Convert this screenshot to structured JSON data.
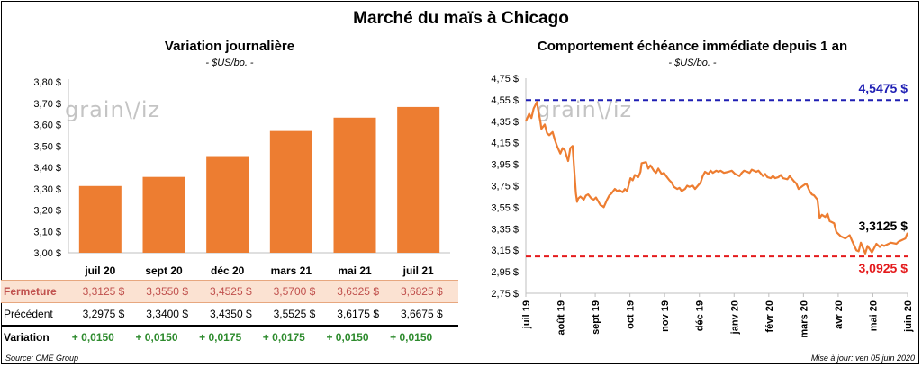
{
  "main_title": "Marché du maïs à Chicago",
  "watermark": {
    "text_left": "grain",
    "text_right": "iz"
  },
  "left_chart": {
    "title": "Variation  journalière",
    "unit": "- $US/bo. -"
  },
  "right_chart": {
    "title": "Comportement  échéance immédiate depuis 1 an",
    "unit": "- $US/bo. -"
  },
  "table": {
    "rows": [
      {
        "label": "Fermeture",
        "values": [
          "3,3125  $",
          "3,3550  $",
          "3,4525  $",
          "3,5700  $",
          "3,6325  $",
          "3,6825  $"
        ]
      },
      {
        "label": "Précédent",
        "values": [
          "3,2975  $",
          "3,3400  $",
          "3,4350  $",
          "3,5525  $",
          "3,6175  $",
          "3,6675  $"
        ]
      },
      {
        "label": "Variation",
        "values": [
          "+ 0,0150",
          "+ 0,0150",
          "+ 0,0175",
          "+ 0,0175",
          "+ 0,0150",
          "+ 0,0150"
        ]
      }
    ]
  },
  "footer": {
    "source": "Source: CME Group",
    "update": "Mise à jour: ven 05 juin 2020"
  },
  "colors": {
    "bar": "#ed7d31",
    "line": "#ed7d31",
    "high": "#1f1fb4",
    "low": "#e41a1c"
  },
  "chart_data": [
    {
      "type": "bar",
      "categories": [
        "juil 20",
        "sept 20",
        "déc 20",
        "mars 21",
        "mai 21",
        "juil 21"
      ],
      "values": [
        3.3125,
        3.355,
        3.4525,
        3.57,
        3.6325,
        3.6825
      ],
      "ylim": [
        3.0,
        3.8
      ],
      "yticks": [
        "3,00 $",
        "3,10 $",
        "3,20 $",
        "3,30 $",
        "3,40 $",
        "3,50 $",
        "3,60 $",
        "3,70 $",
        "3,80 $"
      ],
      "grid": false,
      "title": "Variation  journalière"
    },
    {
      "type": "line",
      "title": "Comportement  échéance immédiate depuis 1 an",
      "ylim": [
        2.75,
        4.75
      ],
      "yticks": [
        "2,75 $",
        "2,95 $",
        "3,15 $",
        "3,35 $",
        "3,55 $",
        "3,75 $",
        "3,95 $",
        "4,15 $",
        "4,35 $",
        "4,55 $",
        "4,75 $"
      ],
      "xticks": [
        "juil 19",
        "août 19",
        "sept 19",
        "oct 19",
        "nov 19",
        "déc 19",
        "janv 20",
        "févr 20",
        "mars 20",
        "avr 20",
        "mai 20",
        "juin 20"
      ],
      "x_range": [
        "2019-06-28",
        "2020-06-05"
      ],
      "high": {
        "value": 4.5475,
        "label": "4,5475 $"
      },
      "low": {
        "value": 3.0925,
        "label": "3,0925 $"
      },
      "last": {
        "value": 3.3125,
        "label": "3,3125 $"
      },
      "series": [
        {
          "values": [
            [
              "2019-06-28",
              4.35
            ],
            [
              "2019-07-01",
              4.42
            ],
            [
              "2019-07-03",
              4.38
            ],
            [
              "2019-07-05",
              4.47
            ],
            [
              "2019-07-08",
              4.53
            ],
            [
              "2019-07-09",
              4.46
            ],
            [
              "2019-07-11",
              4.35
            ],
            [
              "2019-07-12",
              4.28
            ],
            [
              "2019-07-15",
              4.32
            ],
            [
              "2019-07-17",
              4.24
            ],
            [
              "2019-07-19",
              4.22
            ],
            [
              "2019-07-22",
              4.25
            ],
            [
              "2019-07-24",
              4.18
            ],
            [
              "2019-07-26",
              4.12
            ],
            [
              "2019-07-29",
              4.05
            ],
            [
              "2019-07-31",
              4.1
            ],
            [
              "2019-08-02",
              4.08
            ],
            [
              "2019-08-05",
              3.98
            ],
            [
              "2019-08-07",
              4.1
            ],
            [
              "2019-08-09",
              4.12
            ],
            [
              "2019-08-12",
              3.68
            ],
            [
              "2019-08-13",
              3.6
            ],
            [
              "2019-08-14",
              3.63
            ],
            [
              "2019-08-16",
              3.65
            ],
            [
              "2019-08-19",
              3.62
            ],
            [
              "2019-08-21",
              3.66
            ],
            [
              "2019-08-23",
              3.67
            ],
            [
              "2019-08-26",
              3.63
            ],
            [
              "2019-08-28",
              3.62
            ],
            [
              "2019-08-30",
              3.64
            ],
            [
              "2019-09-03",
              3.57
            ],
            [
              "2019-09-05",
              3.56
            ],
            [
              "2019-09-06",
              3.55
            ],
            [
              "2019-09-09",
              3.62
            ],
            [
              "2019-09-11",
              3.66
            ],
            [
              "2019-09-13",
              3.68
            ],
            [
              "2019-09-16",
              3.72
            ],
            [
              "2019-09-18",
              3.7
            ],
            [
              "2019-09-20",
              3.71
            ],
            [
              "2019-09-23",
              3.69
            ],
            [
              "2019-09-25",
              3.72
            ],
            [
              "2019-09-27",
              3.7
            ],
            [
              "2019-09-30",
              3.82
            ],
            [
              "2019-10-02",
              3.8
            ],
            [
              "2019-10-04",
              3.85
            ],
            [
              "2019-10-07",
              3.83
            ],
            [
              "2019-10-09",
              3.88
            ],
            [
              "2019-10-10",
              3.96
            ],
            [
              "2019-10-14",
              3.97
            ],
            [
              "2019-10-16",
              3.91
            ],
            [
              "2019-10-18",
              3.94
            ],
            [
              "2019-10-21",
              3.89
            ],
            [
              "2019-10-23",
              3.87
            ],
            [
              "2019-10-25",
              3.91
            ],
            [
              "2019-10-28",
              3.86
            ],
            [
              "2019-10-30",
              3.87
            ],
            [
              "2019-11-01",
              3.84
            ],
            [
              "2019-11-04",
              3.8
            ],
            [
              "2019-11-06",
              3.78
            ],
            [
              "2019-11-08",
              3.74
            ],
            [
              "2019-11-11",
              3.72
            ],
            [
              "2019-11-13",
              3.73
            ],
            [
              "2019-11-15",
              3.7
            ],
            [
              "2019-11-18",
              3.72
            ],
            [
              "2019-11-20",
              3.75
            ],
            [
              "2019-11-22",
              3.74
            ],
            [
              "2019-11-25",
              3.75
            ],
            [
              "2019-11-27",
              3.72
            ],
            [
              "2019-12-02",
              3.78
            ],
            [
              "2019-12-04",
              3.84
            ],
            [
              "2019-12-06",
              3.88
            ],
            [
              "2019-12-09",
              3.86
            ],
            [
              "2019-12-11",
              3.89
            ],
            [
              "2019-12-13",
              3.87
            ],
            [
              "2019-12-16",
              3.89
            ],
            [
              "2019-12-18",
              3.88
            ],
            [
              "2019-12-20",
              3.89
            ],
            [
              "2019-12-23",
              3.87
            ],
            [
              "2019-12-27",
              3.88
            ],
            [
              "2019-12-30",
              3.89
            ],
            [
              "2020-01-02",
              3.86
            ],
            [
              "2020-01-06",
              3.84
            ],
            [
              "2020-01-08",
              3.87
            ],
            [
              "2020-01-10",
              3.89
            ],
            [
              "2020-01-13",
              3.88
            ],
            [
              "2020-01-15",
              3.87
            ],
            [
              "2020-01-17",
              3.9
            ],
            [
              "2020-01-21",
              3.88
            ],
            [
              "2020-01-23",
              3.89
            ],
            [
              "2020-01-27",
              3.84
            ],
            [
              "2020-01-29",
              3.86
            ],
            [
              "2020-01-31",
              3.83
            ],
            [
              "2020-02-03",
              3.82
            ],
            [
              "2020-02-05",
              3.84
            ],
            [
              "2020-02-07",
              3.82
            ],
            [
              "2020-02-10",
              3.83
            ],
            [
              "2020-02-12",
              3.85
            ],
            [
              "2020-02-14",
              3.82
            ],
            [
              "2020-02-18",
              3.81
            ],
            [
              "2020-02-20",
              3.84
            ],
            [
              "2020-02-24",
              3.79
            ],
            [
              "2020-02-26",
              3.77
            ],
            [
              "2020-02-28",
              3.72
            ],
            [
              "2020-03-03",
              3.75
            ],
            [
              "2020-03-06",
              3.77
            ],
            [
              "2020-03-09",
              3.7
            ],
            [
              "2020-03-11",
              3.67
            ],
            [
              "2020-03-13",
              3.66
            ],
            [
              "2020-03-16",
              3.62
            ],
            [
              "2020-03-18",
              3.45
            ],
            [
              "2020-03-20",
              3.48
            ],
            [
              "2020-03-23",
              3.46
            ],
            [
              "2020-03-25",
              3.49
            ],
            [
              "2020-03-27",
              3.42
            ],
            [
              "2020-03-31",
              3.4
            ],
            [
              "2020-04-02",
              3.32
            ],
            [
              "2020-04-06",
              3.28
            ],
            [
              "2020-04-08",
              3.27
            ],
            [
              "2020-04-10",
              3.26
            ],
            [
              "2020-04-14",
              3.29
            ],
            [
              "2020-04-16",
              3.24
            ],
            [
              "2020-04-20",
              3.15
            ],
            [
              "2020-04-22",
              3.14
            ],
            [
              "2020-04-24",
              3.22
            ],
            [
              "2020-04-28",
              3.12
            ],
            [
              "2020-04-30",
              3.19
            ],
            [
              "2020-05-04",
              3.13
            ],
            [
              "2020-05-06",
              3.17
            ],
            [
              "2020-05-08",
              3.21
            ],
            [
              "2020-05-11",
              3.18
            ],
            [
              "2020-05-13",
              3.2
            ],
            [
              "2020-05-15",
              3.19
            ],
            [
              "2020-05-19",
              3.21
            ],
            [
              "2020-05-21",
              3.22
            ],
            [
              "2020-05-26",
              3.21
            ],
            [
              "2020-05-28",
              3.23
            ],
            [
              "2020-06-01",
              3.25
            ],
            [
              "2020-06-03",
              3.26
            ],
            [
              "2020-06-05",
              3.3125
            ]
          ]
        }
      ]
    }
  ]
}
